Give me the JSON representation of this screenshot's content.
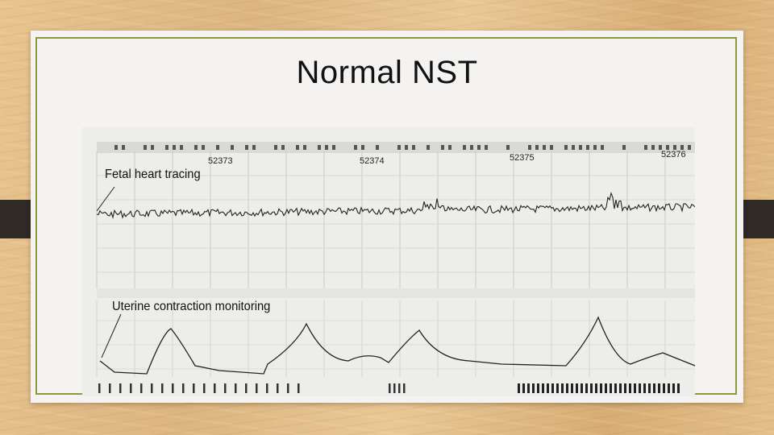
{
  "slide": {
    "title": "Normal NST"
  },
  "tracing": {
    "labels": {
      "fetal_heart": "Fetal heart tracing",
      "uterine_contraction": "Uterine contraction monitoring"
    },
    "chart_numbers": [
      "52373",
      "52374",
      "52375",
      "52376"
    ]
  }
}
